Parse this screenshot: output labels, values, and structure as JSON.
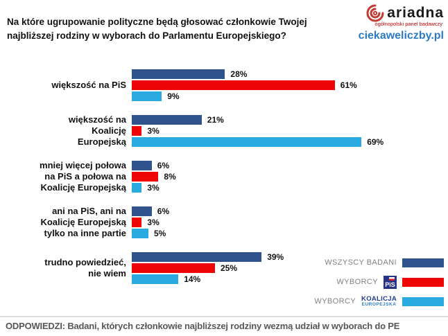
{
  "title": "Na które ugrupowanie polityczne będą głosować członkowie Twojej najbliższej rodziny w wyborach do Parlamentu Europejskiego?",
  "brand": {
    "name": "ariadna",
    "tagline": "ogólnopolski panel badawczy",
    "site": "ciekaweliczby.pl"
  },
  "colors": {
    "navy": "#30538e",
    "red": "#ee0505",
    "lightblue": "#29abe2"
  },
  "chart_data": {
    "type": "bar",
    "orientation": "horizontal",
    "value_suffix": "%",
    "xlim": [
      0,
      75
    ],
    "grid": false,
    "legend_position": "bottom-right",
    "categories": [
      [
        "większość na PiS"
      ],
      [
        "większość na",
        "Koalicję",
        "Europejską"
      ],
      [
        "mniej więcej połowa",
        "na PiS a połowa na",
        "Koalicję Europejską"
      ],
      [
        "ani na PiS, ani na",
        "Koalicję Europejską",
        "tylko na inne partie"
      ],
      [
        "trudno powiedzieć,",
        "nie wiem"
      ]
    ],
    "series": [
      {
        "name": "WSZYSCY BADANI",
        "color": "#30538e",
        "values": [
          28,
          21,
          6,
          6,
          39
        ]
      },
      {
        "name": "WYBORCY PiS",
        "color": "#ee0505",
        "values": [
          61,
          3,
          8,
          3,
          25
        ]
      },
      {
        "name": "WYBORCY KOALICJA EUROPEJSKA",
        "color": "#29abe2",
        "values": [
          9,
          69,
          3,
          5,
          14
        ]
      }
    ]
  },
  "legend": {
    "row1_label": "WSZYSCY BADANI",
    "row2_label": "WYBORCY",
    "row2_logo": "PiS",
    "row3_label": "WYBORCY",
    "row3_logo_line1": "KOALICJA",
    "row3_logo_line2": "EUROPEJSKA"
  },
  "footer": "ODPOWIEDZI: Badani, których członkowie najbliższej rodziny wezmą udział w wyborach do PE"
}
